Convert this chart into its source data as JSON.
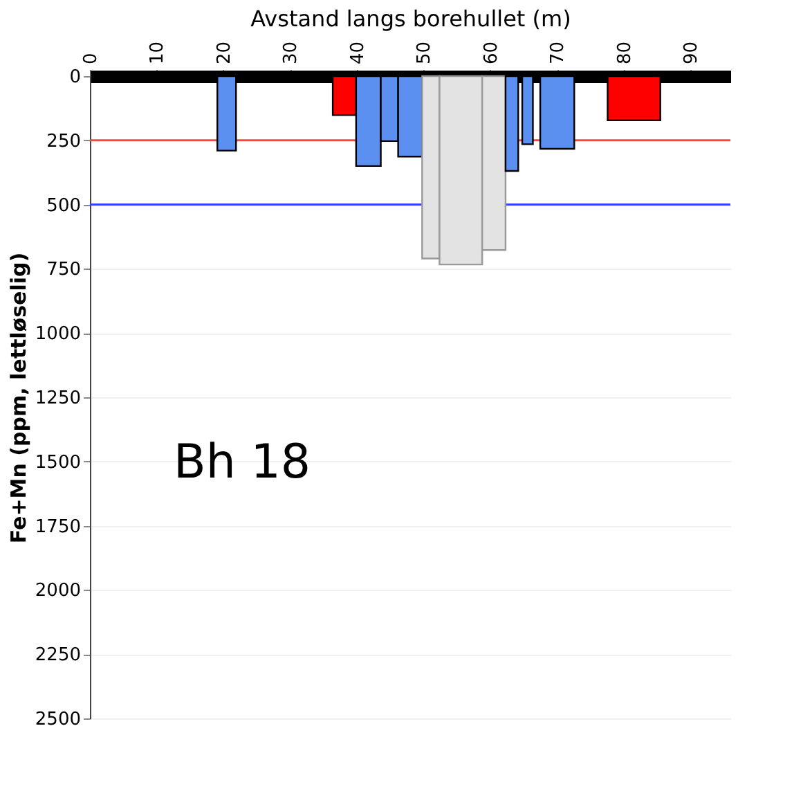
{
  "chart_data": {
    "type": "histogram",
    "xlabel": "Avstand langs borehullet (m)",
    "ylabel": "Fe+Mn (ppm, lettløselig)",
    "bins": [
      19.1,
      21.9,
      36.4,
      39.9,
      43.6,
      46.2,
      49.8,
      52.4,
      58.8,
      62.3,
      64.2,
      64.8,
      66.4,
      67.5,
      72.6,
      77.6,
      85.5
    ],
    "values": [
      290,
      null,
      152,
      350,
      253,
      313,
      710,
      733,
      677,
      369,
      null,
      265,
      null,
      283,
      null,
      172
    ],
    "colors": [
      "#5b8ff0",
      "#ffffff",
      "#ff0000",
      "#5b8ff0",
      "#5b8ff0",
      "#5b8ff0",
      "#e3e3e3",
      "#e3e3e3",
      "#e3e3e3",
      "#5b8ff0",
      "#ffffff",
      "#5b8ff0",
      "#ffffff",
      "#5b8ff0",
      "#ffffff",
      "#ff0000"
    ],
    "xlim": [
      0,
      96
    ],
    "xticks": [
      0,
      10,
      20,
      30,
      40,
      50,
      60,
      70,
      80,
      90
    ],
    "ylim": [
      2500,
      0
    ],
    "yticks": [
      0,
      250,
      500,
      750,
      1000,
      1250,
      1500,
      1750,
      2000,
      2250,
      2500
    ],
    "ref_lines": [
      {
        "axis": "y",
        "value": 250,
        "color": "#ff4444"
      },
      {
        "axis": "y",
        "value": 500,
        "color": "#3344ff"
      }
    ],
    "annotations": [
      "Bh 18"
    ],
    "grid": "y"
  }
}
